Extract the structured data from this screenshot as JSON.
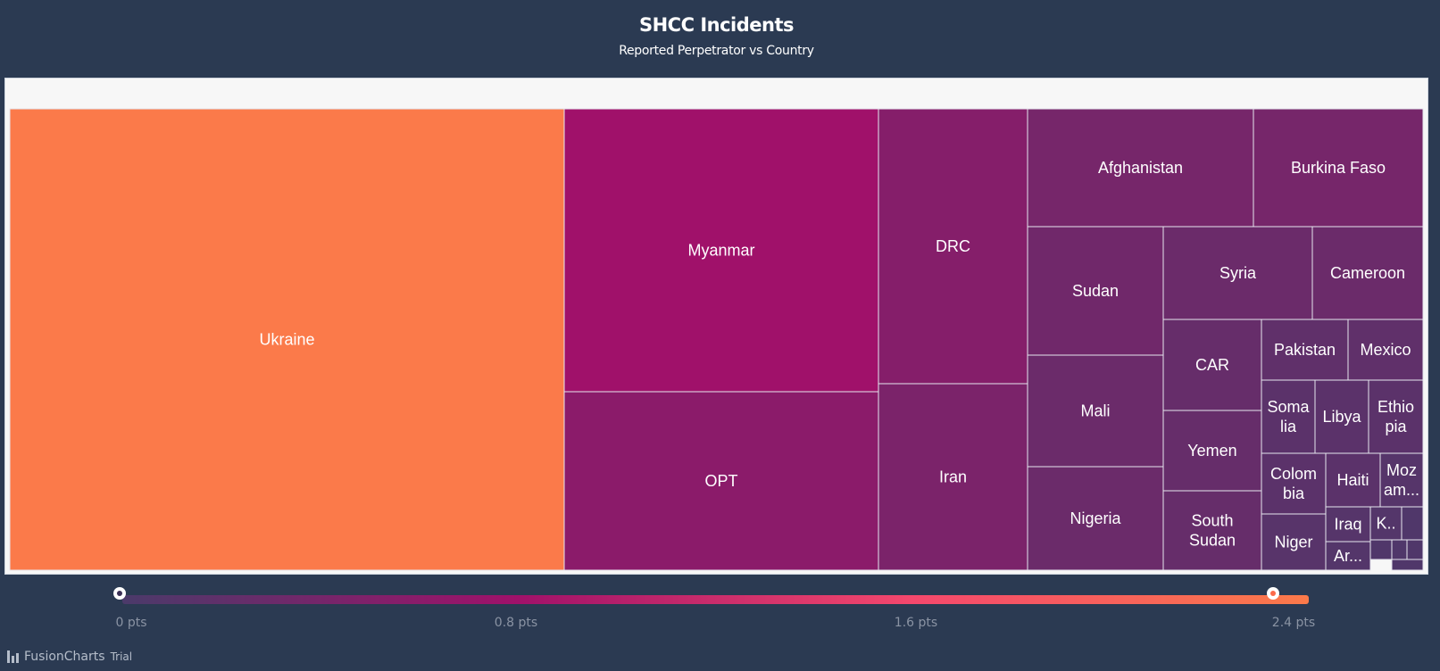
{
  "chart_data": {
    "type": "treemap",
    "title": "SHCC Incidents",
    "subtitle": "Reported Perpetrator vs Country",
    "items": [
      {
        "label": "Ukraine",
        "display": "Ukraine",
        "value": 2.4
      },
      {
        "label": "Myanmar",
        "display": "Myanmar",
        "value": 0.8
      },
      {
        "label": "OPT",
        "display": "OPT",
        "value": 0.6
      },
      {
        "label": "DRC",
        "display": "DRC",
        "value": 0.55
      },
      {
        "label": "Iran",
        "display": "Iran",
        "value": 0.45
      },
      {
        "label": "Afghanistan",
        "display": "Afghanistan",
        "value": 0.4
      },
      {
        "label": "Burkina Faso",
        "display": "Burkina Faso",
        "value": 0.4
      },
      {
        "label": "Sudan",
        "display": "Sudan",
        "value": 0.35
      },
      {
        "label": "Mali",
        "display": "Mali",
        "value": 0.3
      },
      {
        "label": "Nigeria",
        "display": "Nigeria",
        "value": 0.3
      },
      {
        "label": "Syria",
        "display": "Syria",
        "value": 0.3
      },
      {
        "label": "Cameroon",
        "display": "Cameroon",
        "value": 0.3
      },
      {
        "label": "CAR",
        "display": "CAR",
        "value": 0.25
      },
      {
        "label": "Yemen",
        "display": "Yemen",
        "value": 0.25
      },
      {
        "label": "South Sudan",
        "display": "South Sudan",
        "value": 0.25
      },
      {
        "label": "Pakistan",
        "display": "Pakistan",
        "value": 0.2
      },
      {
        "label": "Mexico",
        "display": "Mexico",
        "value": 0.2
      },
      {
        "label": "Somalia",
        "display": "Soma lia",
        "value": 0.15
      },
      {
        "label": "Libya",
        "display": "Libya",
        "value": 0.15
      },
      {
        "label": "Ethiopia",
        "display": "Ethio pia",
        "value": 0.15
      },
      {
        "label": "Colombia",
        "display": "Colom bia",
        "value": 0.15
      },
      {
        "label": "Haiti",
        "display": "Haiti",
        "value": 0.15
      },
      {
        "label": "Mozambique",
        "display": "Moz am...",
        "value": 0.1
      },
      {
        "label": "Niger",
        "display": "Niger",
        "value": 0.12
      },
      {
        "label": "Iraq",
        "display": "Iraq",
        "value": 0.1
      },
      {
        "label": "K",
        "display": "K..",
        "value": 0.08
      },
      {
        "label": "Ar",
        "display": "Ar...",
        "value": 0.08
      }
    ],
    "legend": {
      "min": 0,
      "max": 2.4,
      "ticks": [
        "0 pts",
        "0.8 pts",
        "1.6 pts",
        "2.4 pts"
      ],
      "colors": [
        "#4b3a6a",
        "#a0116a",
        "#f5486d",
        "#fb7a4a"
      ]
    }
  },
  "branding": {
    "product": "FusionCharts",
    "suffix": "Trial"
  },
  "colors": {
    "background": "#2b3a52",
    "cell_border": "#e6e6ee"
  }
}
